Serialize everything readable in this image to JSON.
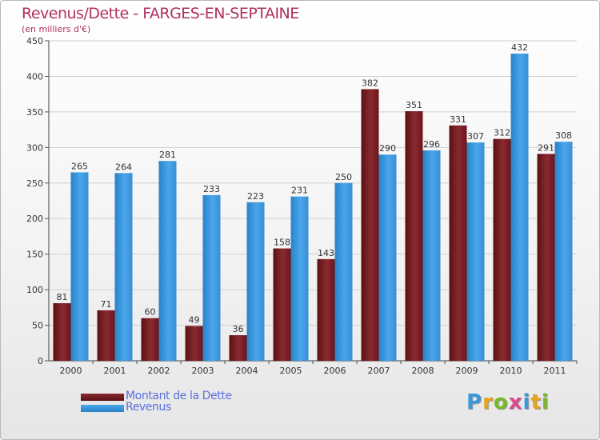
{
  "header": {
    "title": "Revenus/Dette - FARGES-EN-SEPTAINE",
    "subtitle": "(en milliers d'€)"
  },
  "logo": {
    "letters": [
      "P",
      "r",
      "o",
      "x",
      "i",
      "t",
      "i"
    ],
    "colors": [
      "#3a9ad9",
      "#e8a21c",
      "#7ab829",
      "#d94a8c",
      "#3a9ad9",
      "#e8a21c",
      "#7ab829"
    ]
  },
  "chart_data": {
    "type": "bar",
    "categories": [
      "2000",
      "2001",
      "2002",
      "2003",
      "2004",
      "2005",
      "2006",
      "2007",
      "2008",
      "2009",
      "2010",
      "2011"
    ],
    "series": [
      {
        "name": "Montant de la Dette",
        "color": "#7a2026",
        "values": [
          81,
          71,
          60,
          49,
          36,
          158,
          143,
          382,
          351,
          331,
          312,
          291
        ]
      },
      {
        "name": "Revenus",
        "color": "#3f9be0",
        "values": [
          265,
          264,
          281,
          233,
          223,
          231,
          250,
          290,
          296,
          307,
          432,
          308
        ]
      }
    ],
    "ylim": [
      0,
      450
    ],
    "yticks": [
      0,
      50,
      100,
      150,
      200,
      250,
      300,
      350,
      400,
      450
    ],
    "grid": true,
    "legend": "bottom-left"
  }
}
